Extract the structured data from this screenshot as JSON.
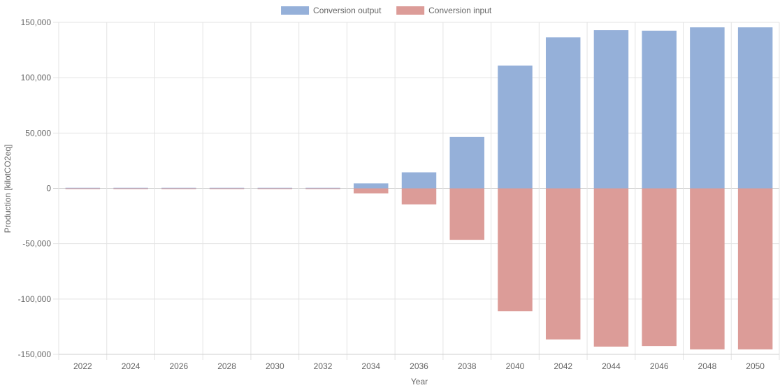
{
  "chart_data": {
    "type": "bar",
    "title": "",
    "xlabel": "Year",
    "ylabel": "Production [kilotCO2eq]",
    "categories": [
      "2022",
      "2024",
      "2026",
      "2028",
      "2030",
      "2032",
      "2034",
      "2036",
      "2038",
      "2040",
      "2042",
      "2044",
      "2046",
      "2048",
      "2050"
    ],
    "ylim": [
      -150000,
      150000
    ],
    "yticks": [
      150000,
      100000,
      50000,
      0,
      -50000,
      -100000,
      -150000
    ],
    "ytick_labels": [
      "150,000",
      "100,000",
      "50,000",
      "0",
      "-50,000",
      "-100,000",
      "-150,000"
    ],
    "grid": true,
    "legend_position": "top-center",
    "series": [
      {
        "name": "Conversion output",
        "color": "#95b0d9",
        "values": [
          500,
          500,
          500,
          500,
          500,
          500,
          4500,
          14500,
          46500,
          111000,
          136500,
          143000,
          142500,
          145500,
          145500
        ]
      },
      {
        "name": "Conversion input",
        "color": "#dc9c98",
        "values": [
          -500,
          -500,
          -500,
          -500,
          -500,
          -500,
          -4500,
          -14500,
          -46500,
          -111000,
          -136500,
          -143000,
          -142500,
          -145500,
          -145500
        ]
      }
    ]
  }
}
